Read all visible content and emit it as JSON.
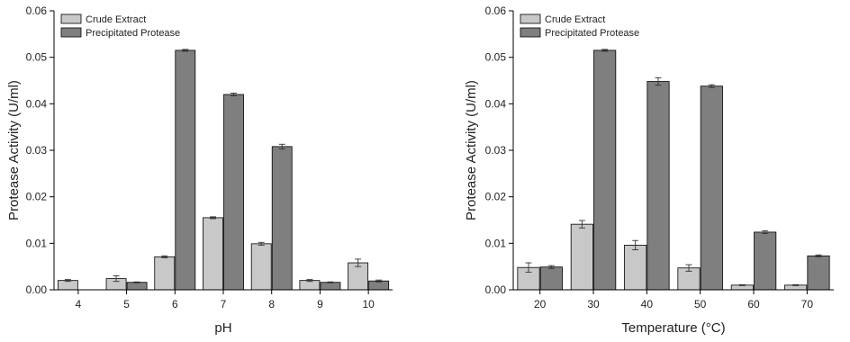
{
  "chart_data": [
    {
      "type": "bar",
      "xlabel": "pH",
      "ylabel": "Protease Activity (U/ml)",
      "categories": [
        "4",
        "5",
        "6",
        "7",
        "8",
        "9",
        "10"
      ],
      "ylim": [
        0,
        0.06
      ],
      "yticks": [
        "0.00",
        "0.01",
        "0.02",
        "0.03",
        "0.04",
        "0.05",
        "0.06"
      ],
      "legend_position": "top-left",
      "series": [
        {
          "name": "Crude Extract",
          "color": "#c8c8c8",
          "values": [
            0.002,
            0.0024,
            0.0071,
            0.0155,
            0.0099,
            0.002,
            0.0058
          ],
          "errors": [
            0.0002,
            0.0006,
            0.0002,
            0.0002,
            0.0003,
            0.0002,
            0.0008
          ]
        },
        {
          "name": "Precipitated Protease",
          "color": "#7f7f7f",
          "values": [
            null,
            0.0016,
            0.0515,
            0.042,
            0.0308,
            0.0016,
            0.0019
          ],
          "errors": [
            null,
            0.0001,
            0.0002,
            0.0003,
            0.0005,
            0.0001,
            0.0002
          ]
        }
      ]
    },
    {
      "type": "bar",
      "xlabel": "Temperature (°C)",
      "ylabel": "Protease Activity (U/ml)",
      "categories": [
        "20",
        "30",
        "40",
        "50",
        "60",
        "70"
      ],
      "ylim": [
        0,
        0.06
      ],
      "yticks": [
        "0.00",
        "0.01",
        "0.02",
        "0.03",
        "0.04",
        "0.05",
        "0.06"
      ],
      "legend_position": "top-left",
      "series": [
        {
          "name": "Crude Extract",
          "color": "#c8c8c8",
          "values": [
            0.0048,
            0.0141,
            0.0096,
            0.0047,
            0.001,
            0.001
          ],
          "errors": [
            0.001,
            0.0008,
            0.001,
            0.0007,
            0.0001,
            0.0001
          ]
        },
        {
          "name": "Precipitated Protease",
          "color": "#7f7f7f",
          "values": [
            0.0049,
            0.0515,
            0.0448,
            0.0438,
            0.0124,
            0.0073
          ],
          "errors": [
            0.0003,
            0.0002,
            0.0008,
            0.0003,
            0.0003,
            0.0002
          ]
        }
      ]
    }
  ]
}
